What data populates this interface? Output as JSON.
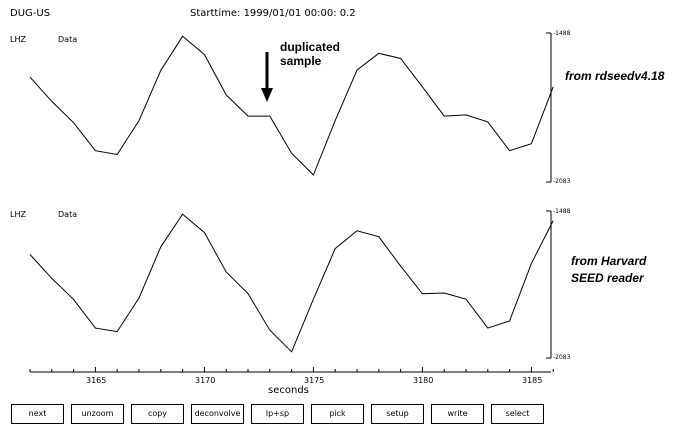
{
  "header": {
    "station": "DUG-US",
    "starttime": "Starttime:  1999/01/01  00:00:  0.2"
  },
  "traces": [
    {
      "channel": "LHZ",
      "kind": "Data",
      "max_label": "-1488",
      "min_label": "-2083",
      "source": [
        "from rdseedv4.18"
      ]
    },
    {
      "channel": "LHZ",
      "kind": "Data",
      "max_label": "-1488",
      "min_label": "-2083",
      "source": [
        "from Harvard",
        "SEED reader"
      ]
    }
  ],
  "annotation": {
    "text": [
      "duplicated",
      "sample"
    ]
  },
  "xaxis": {
    "label": "seconds",
    "ticks": [
      "3165",
      "3170",
      "3175",
      "3180",
      "3185"
    ]
  },
  "buttons": [
    {
      "label": "next",
      "name": "next-button"
    },
    {
      "label": "unzoom",
      "name": "unzoom-button"
    },
    {
      "label": "copy",
      "name": "copy-button"
    },
    {
      "label": "deconvolve",
      "name": "deconvolve-button"
    },
    {
      "label": "lp+sp",
      "name": "lp-sp-button"
    },
    {
      "label": "pick",
      "name": "pick-button"
    },
    {
      "label": "setup",
      "name": "setup-button"
    },
    {
      "label": "write",
      "name": "write-button"
    },
    {
      "label": "select",
      "name": "select-button"
    }
  ],
  "chart_data": {
    "type": "line",
    "xlabel": "seconds",
    "xlim": [
      3162,
      3186
    ],
    "ylim": [
      -2083,
      -1488
    ],
    "series": [
      {
        "x": [
          3162,
          3163,
          3164,
          3165,
          3166,
          3167,
          3168,
          3169,
          3170,
          3171,
          3172,
          3173,
          3174,
          3175,
          3176,
          3177,
          3178,
          3179,
          3180,
          3181,
          3182,
          3183,
          3184,
          3185,
          3186
        ],
        "y": [
          -1664,
          -1761,
          -1846,
          -1958,
          -1973,
          -1838,
          -1637,
          -1501,
          -1574,
          -1735,
          -1820,
          -1820,
          -1968,
          -2055,
          -1838,
          -1636,
          -1569,
          -1590,
          -1703,
          -1820,
          -1815,
          -1843,
          -1958,
          -1930,
          -1703
        ]
      },
      {
        "x": [
          3162,
          3163,
          3164,
          3165,
          3166,
          3167,
          3168,
          3169,
          3170,
          3171,
          3172,
          3173,
          3174,
          3175,
          3176,
          3177,
          3178,
          3179,
          3180,
          3181,
          3182,
          3183,
          3184,
          3185,
          3186
        ],
        "y": [
          -1664,
          -1761,
          -1846,
          -1962,
          -1976,
          -1840,
          -1633,
          -1501,
          -1575,
          -1735,
          -1822,
          -1970,
          -2058,
          -1845,
          -1640,
          -1568,
          -1592,
          -1711,
          -1823,
          -1820,
          -1845,
          -1962,
          -1933,
          -1700,
          -1527
        ]
      }
    ]
  }
}
